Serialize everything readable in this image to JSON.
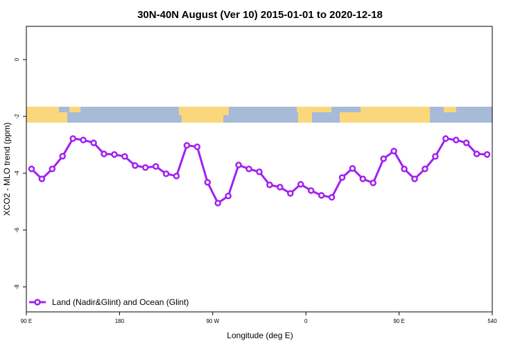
{
  "chart_data": {
    "type": "line",
    "title": "30N-40N August (Ver 10)   2015-01-01 to 2020-12-18",
    "x_label": "Longitude (deg E)",
    "y_label": "XCO2 - MLO trend (ppm)",
    "x": [
      95,
      105,
      115,
      125,
      135,
      145,
      155,
      165,
      175,
      185,
      195,
      205,
      215,
      225,
      235,
      245,
      255,
      265,
      275,
      285,
      295,
      305,
      315,
      325,
      335,
      345,
      355,
      365,
      375,
      385,
      395,
      405,
      415,
      425,
      435,
      445,
      455,
      465,
      475,
      485,
      495,
      505,
      515,
      525,
      535
    ],
    "series": [
      {
        "name": "Land (Nadir&Glint) and Ocean (Glint)",
        "color": "#a020f0",
        "values": [
          -3.85,
          -4.2,
          -3.85,
          -3.4,
          -2.78,
          -2.83,
          -2.93,
          -3.32,
          -3.34,
          -3.41,
          -3.73,
          -3.8,
          -3.76,
          -4.02,
          -4.1,
          -3.02,
          -3.07,
          -4.32,
          -5.05,
          -4.8,
          -3.71,
          -3.85,
          -3.95,
          -4.41,
          -4.49,
          -4.71,
          -4.39,
          -4.61,
          -4.78,
          -4.85,
          -4.15,
          -3.83,
          -4.2,
          -4.34,
          -3.49,
          -3.22,
          -3.85,
          -4.2,
          -3.85,
          -3.41,
          -2.78,
          -2.83,
          -2.93,
          -3.32,
          -3.34
        ]
      }
    ],
    "xlim": [
      90,
      540
    ],
    "xticks": [
      {
        "value": 90,
        "label": "90 E"
      },
      180,
      {
        "value": 270,
        "label": "90 W"
      },
      {
        "value": 360,
        "label": "0"
      },
      {
        "value": 450,
        "label": "90 E"
      },
      540
    ],
    "ylim": [
      -8.88,
      1.17
    ],
    "yticks": [
      0,
      -2,
      -4,
      -6,
      -8
    ],
    "legend": "bottom-left"
  }
}
